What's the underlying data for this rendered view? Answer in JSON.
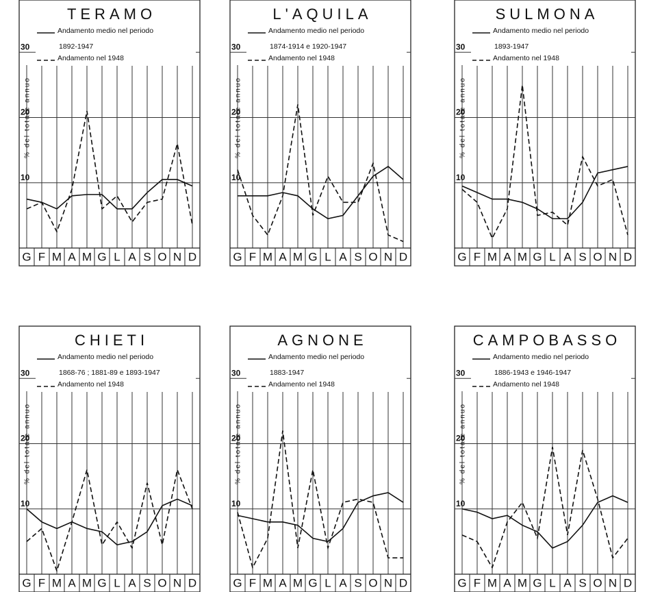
{
  "chart_data": [
    {
      "type": "line",
      "title": "TERAMO",
      "period": "1892-1947",
      "ylabel": "% del totale annuo",
      "categories": [
        "G",
        "F",
        "M",
        "A",
        "M",
        "G",
        "L",
        "A",
        "S",
        "O",
        "N",
        "D"
      ],
      "ylim": [
        0,
        38
      ],
      "yticks": [
        10,
        20,
        30
      ],
      "grid": true,
      "series": [
        {
          "name": "Andamento medio nel periodo",
          "color": "#111111",
          "style": "solid",
          "values": [
            7.5,
            7,
            6,
            8,
            8.2,
            8.2,
            6,
            6,
            8.5,
            10.5,
            10.5,
            9.5
          ]
        },
        {
          "name": "Andamento nel 1948",
          "color": "#111111",
          "style": "dashed",
          "values": [
            6,
            7,
            2.5,
            9,
            21,
            6,
            8,
            4,
            7,
            7.5,
            16,
            3.5
          ]
        }
      ]
    },
    {
      "type": "line",
      "title": "L'AQUILA",
      "period": "1874-1914 e 1920-1947",
      "ylabel": "% del totale annuo",
      "categories": [
        "G",
        "F",
        "M",
        "A",
        "M",
        "G",
        "L",
        "A",
        "S",
        "O",
        "N",
        "D"
      ],
      "ylim": [
        0,
        38
      ],
      "yticks": [
        10,
        20,
        30
      ],
      "grid": true,
      "series": [
        {
          "name": "Andamento medio nel periodo",
          "color": "#111111",
          "style": "solid",
          "values": [
            8,
            8,
            8,
            8.5,
            8,
            6,
            4.5,
            5,
            8,
            11,
            12.5,
            10.5
          ]
        },
        {
          "name": "Andamento nel 1948",
          "color": "#111111",
          "style": "dashed",
          "values": [
            12,
            5,
            2,
            8,
            22,
            5,
            11,
            7,
            7,
            13,
            2,
            1
          ]
        }
      ]
    },
    {
      "type": "line",
      "title": "SULMONA",
      "period": "1893-1947",
      "ylabel": "% del totale annuo",
      "categories": [
        "G",
        "F",
        "M",
        "A",
        "M",
        "G",
        "L",
        "A",
        "S",
        "O",
        "N",
        "D"
      ],
      "ylim": [
        0,
        38
      ],
      "yticks": [
        10,
        20,
        30
      ],
      "grid": true,
      "series": [
        {
          "name": "Andamento medio nel periodo",
          "color": "#111111",
          "style": "solid",
          "values": [
            9.5,
            8.5,
            7.5,
            7.5,
            7,
            6,
            4.5,
            4.5,
            7,
            11.5,
            12,
            12.5
          ]
        },
        {
          "name": "Andamento nel 1948",
          "color": "#111111",
          "style": "dashed",
          "values": [
            9,
            7,
            1.5,
            6,
            25,
            5,
            5.5,
            3.5,
            14,
            9.5,
            10.5,
            2
          ]
        }
      ]
    },
    {
      "type": "line",
      "title": "CHIETI",
      "period": "1868-76 ; 1881-89 e 1893-1947",
      "ylabel": "% del totale annuo",
      "categories": [
        "G",
        "F",
        "M",
        "A",
        "M",
        "G",
        "L",
        "A",
        "S",
        "O",
        "N",
        "D"
      ],
      "ylim": [
        0,
        38
      ],
      "yticks": [
        10,
        20,
        30
      ],
      "grid": true,
      "series": [
        {
          "name": "Andamento medio nel periodo",
          "color": "#111111",
          "style": "solid",
          "values": [
            10,
            8,
            7,
            8,
            7,
            6.5,
            4.5,
            5,
            6.5,
            10.5,
            11.5,
            10.5
          ]
        },
        {
          "name": "Andamento nel 1948",
          "color": "#111111",
          "style": "dashed",
          "values": [
            5,
            7,
            0.5,
            8,
            16,
            4.5,
            8,
            4,
            14,
            4.5,
            16,
            10
          ]
        }
      ]
    },
    {
      "type": "line",
      "title": "AGNONE",
      "period": "1883-1947",
      "ylabel": "% del totale annuo",
      "categories": [
        "G",
        "F",
        "M",
        "A",
        "M",
        "G",
        "L",
        "A",
        "S",
        "O",
        "N",
        "D"
      ],
      "ylim": [
        0,
        38
      ],
      "yticks": [
        10,
        20,
        30
      ],
      "grid": true,
      "series": [
        {
          "name": "Andamento medio nel periodo",
          "color": "#111111",
          "style": "solid",
          "values": [
            9,
            8.5,
            8,
            8,
            7.5,
            5.5,
            5,
            7,
            11,
            12,
            12.5,
            11
          ]
        },
        {
          "name": "Andamento nel 1948",
          "color": "#111111",
          "style": "dashed",
          "values": [
            9.5,
            1,
            5.5,
            22,
            4,
            16,
            4,
            11,
            11.5,
            11,
            2.5,
            2.5
          ]
        }
      ]
    },
    {
      "type": "line",
      "title": "CAMPOBASSO",
      "period": "1886-1943 e 1946-1947",
      "ylabel": "% del totale annuo",
      "categories": [
        "G",
        "F",
        "M",
        "A",
        "M",
        "G",
        "L",
        "A",
        "S",
        "O",
        "N",
        "D"
      ],
      "ylim": [
        0,
        38
      ],
      "yticks": [
        10,
        20,
        30
      ],
      "grid": true,
      "series": [
        {
          "name": "Andamento medio nel periodo",
          "color": "#111111",
          "style": "solid",
          "values": [
            10,
            9.5,
            8.5,
            9,
            7.5,
            6.5,
            4,
            5,
            7.5,
            11,
            12,
            11
          ]
        },
        {
          "name": "Andamento nel 1948",
          "color": "#111111",
          "style": "dashed",
          "values": [
            6,
            5,
            1,
            8,
            11,
            5.5,
            19.5,
            6,
            19,
            11.5,
            2.5,
            5.5
          ]
        }
      ]
    }
  ]
}
